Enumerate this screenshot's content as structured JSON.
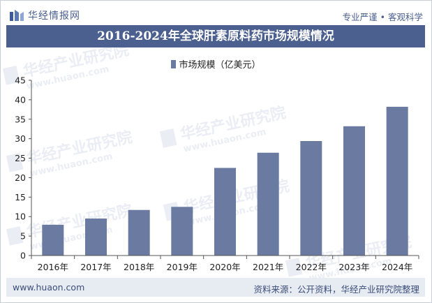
{
  "header": {
    "brand_name": "华经情报网",
    "slogan": "专业严谨 • 客观科学"
  },
  "footer": {
    "url": "www.huaon.com",
    "source": "资料来源：公开资料，华经产业研究院整理"
  },
  "watermark": {
    "cn": "华经产业研究院",
    "en": "www.huaon.com"
  },
  "colors": {
    "bar": "#6a7aa0",
    "title_bg": "#4c6090",
    "brand": "#4a5f8f"
  },
  "chart_data": {
    "type": "bar",
    "title": "2016-2024年全球肝素原料药市场规模情况",
    "categories": [
      "2016年",
      "2017年",
      "2018年",
      "2019年",
      "2020年",
      "2021年",
      "2022年",
      "2023年",
      "2024年"
    ],
    "series": [
      {
        "name": "市场规模（亿美元）",
        "values": [
          7.9,
          9.5,
          11.7,
          12.5,
          22.5,
          26.4,
          29.4,
          33.2,
          38.2
        ]
      }
    ],
    "ylim": [
      0,
      45
    ],
    "yticks": [
      0,
      5,
      10,
      15,
      20,
      25,
      30,
      35,
      40,
      45
    ],
    "grid": false,
    "legend": "top-center",
    "xlabel": "",
    "ylabel": ""
  }
}
